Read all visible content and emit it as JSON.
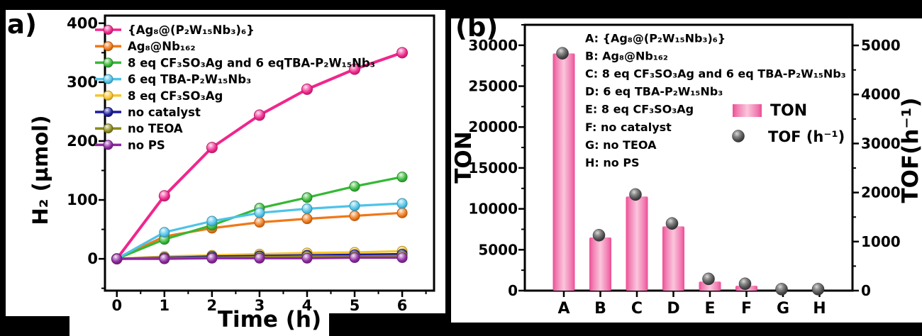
{
  "panels": {
    "a": {
      "label": "a)",
      "xlabel": "Time (h)",
      "ylabel": "H₂ (µmol)"
    },
    "b": {
      "label": "(b)",
      "ylabel_left": "TON",
      "ylabel_right": "TOF(h⁻¹)",
      "legend": {
        "ton": "TON",
        "tof": "TOF (h⁻¹)"
      },
      "annotations": [
        "A: {Ag₈@(P₂W₁₅Nb₃)₆}",
        "B: Ag₈@Nb₁₆₂",
        "C: 8 eq CF₃SO₃Ag and 6 eq TBA-P₂W₁₅Nb₃",
        "D: 6 eq TBA-P₂W₁₅Nb₃",
        "E: 8 eq CF₃SO₃Ag",
        "F: no catalyst",
        "G: no TEOA",
        "H: no PS"
      ]
    }
  },
  "chart_data": [
    {
      "type": "line",
      "panel": "a",
      "title": "",
      "xlabel": "Time (h)",
      "ylabel": "H₂ (µmol)",
      "x": [
        0,
        1,
        2,
        3,
        4,
        5,
        6
      ],
      "xlim": [
        -0.25,
        6.67
      ],
      "ylim": [
        -54,
        413
      ],
      "xticks": [
        0,
        1,
        2,
        3,
        4,
        5,
        6
      ],
      "xticks_minor": [
        0.5,
        1.5,
        2.5,
        3.5,
        4.5,
        5.5,
        6.5
      ],
      "yticks": [
        0,
        100,
        200,
        300,
        400
      ],
      "yticks_minor": [
        -50,
        50,
        150,
        250,
        350
      ],
      "grid": false,
      "legend_position": "inside-top-left",
      "series": [
        {
          "name": "{Ag₈@(P₂W₁₅Nb₃)₆}",
          "color": "#F1268C",
          "values": [
            0,
            107,
            189,
            244,
            288,
            322,
            350
          ]
        },
        {
          "name": "Ag₈@Nb₁₆₂",
          "color": "#F07818",
          "values": [
            0,
            38,
            52,
            62,
            68,
            73,
            78
          ]
        },
        {
          "name": "8 eq CF₃SO₃Ag and 6 eqTBA-P₂W₁₅Nb₃",
          "color": "#35B835",
          "values": [
            0,
            33,
            57,
            86,
            104,
            123,
            139
          ]
        },
        {
          "name": "6 eq TBA-P₂W₁₅Nb₃",
          "color": "#4EC3E8",
          "values": [
            0,
            45,
            64,
            78,
            85,
            90,
            94
          ]
        },
        {
          "name": "8 eq CF₃SO₃Ag",
          "color": "#F7C52E",
          "values": [
            0,
            4,
            6,
            8,
            10,
            11,
            13
          ]
        },
        {
          "name": "no catalyst",
          "color": "#1C1C9C",
          "values": [
            0,
            2,
            4,
            5,
            6,
            7,
            8
          ]
        },
        {
          "name": "no TEOA",
          "color": "#8B8B1B",
          "values": [
            0,
            1,
            2,
            3,
            4,
            4,
            5
          ]
        },
        {
          "name": "no PS",
          "color": "#8D28A0",
          "values": [
            0,
            0,
            1,
            1,
            1,
            2,
            2
          ]
        }
      ]
    },
    {
      "type": "bar",
      "panel": "b",
      "title": "",
      "categories": [
        "A",
        "B",
        "C",
        "D",
        "E",
        "F",
        "G",
        "H"
      ],
      "ylabel_left": "TON",
      "ylabel_right": "TOF(h⁻¹)",
      "ylim_left": [
        0,
        32500
      ],
      "ylim_right": [
        0,
        5420
      ],
      "yticks_left": [
        0,
        5000,
        10000,
        15000,
        20000,
        25000,
        30000
      ],
      "yticks_left_minor": [
        2500,
        7500,
        12500,
        17500,
        22500,
        27500,
        32500
      ],
      "yticks_right": [
        0,
        1000,
        2000,
        3000,
        4000,
        5000
      ],
      "yticks_right_minor": [
        500,
        1500,
        2500,
        3500,
        4500
      ],
      "series": [
        {
          "name": "TON",
          "render": "bar",
          "axis": "left",
          "values": [
            29000,
            6500,
            11500,
            7850,
            1100,
            600,
            0,
            0
          ]
        },
        {
          "name": "TOF (h⁻¹)",
          "render": "scatter",
          "axis": "right",
          "values": [
            4840,
            1130,
            1960,
            1370,
            240,
            140,
            30,
            30
          ]
        }
      ],
      "colors": {
        "bar_edge": "#EC4D95",
        "bar_center": "#FBC6DC",
        "tof_dot": "#4A4A4A"
      }
    }
  ]
}
